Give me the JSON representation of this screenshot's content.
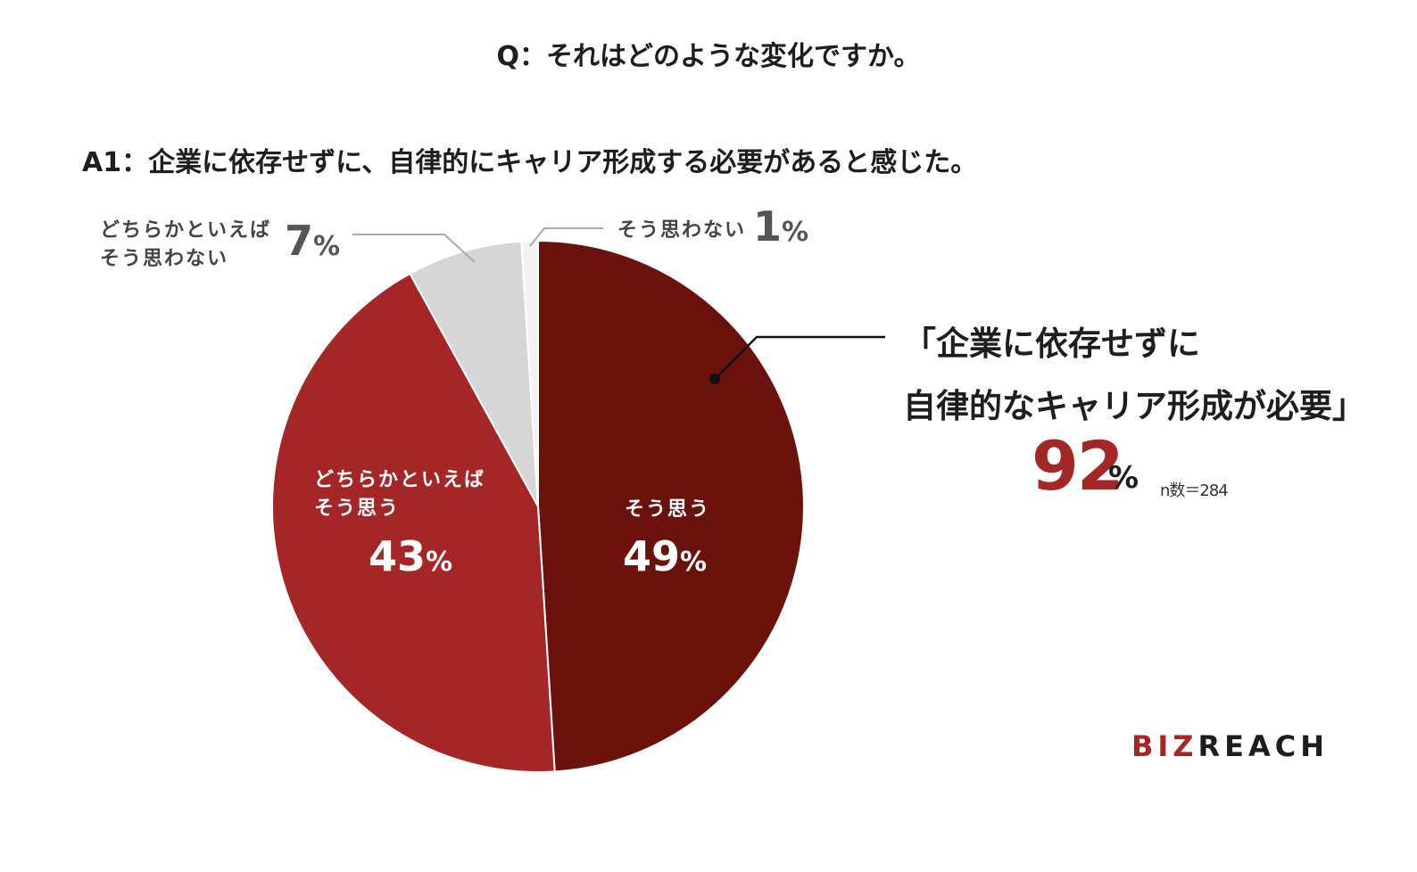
{
  "question": "Q：それはどのような変化ですか。",
  "answer": "A1：企業に依存せずに、自律的にキャリア形成する必要があると感じた。",
  "chart_data": {
    "type": "pie",
    "start": "top",
    "direction": "clockwise",
    "slices": [
      {
        "label_lines": [
          "そう思う"
        ],
        "value": 49,
        "value_text": "49",
        "unit": "%",
        "color": "#6b120c"
      },
      {
        "label_lines": [
          "どちらかといえば",
          "そう思う"
        ],
        "value": 43,
        "value_text": "43",
        "unit": "%",
        "color": "#a42626"
      },
      {
        "label_lines": [
          "どちらかといえば",
          "そう思わない"
        ],
        "value": 7,
        "value_text": "7",
        "unit": "%",
        "color": "#d6d6d6"
      },
      {
        "label_lines": [
          "そう思わない"
        ],
        "value": 1,
        "value_text": "1",
        "unit": "%",
        "color": "#f4f1f3"
      }
    ]
  },
  "callout": {
    "line1": "「企業に依存せずに",
    "line2": "自律的なキャリア形成が必要」",
    "value": "92",
    "unit": "%",
    "n": "n数＝284"
  },
  "logo": {
    "biz": "BIZ",
    "reach": "REACH"
  }
}
